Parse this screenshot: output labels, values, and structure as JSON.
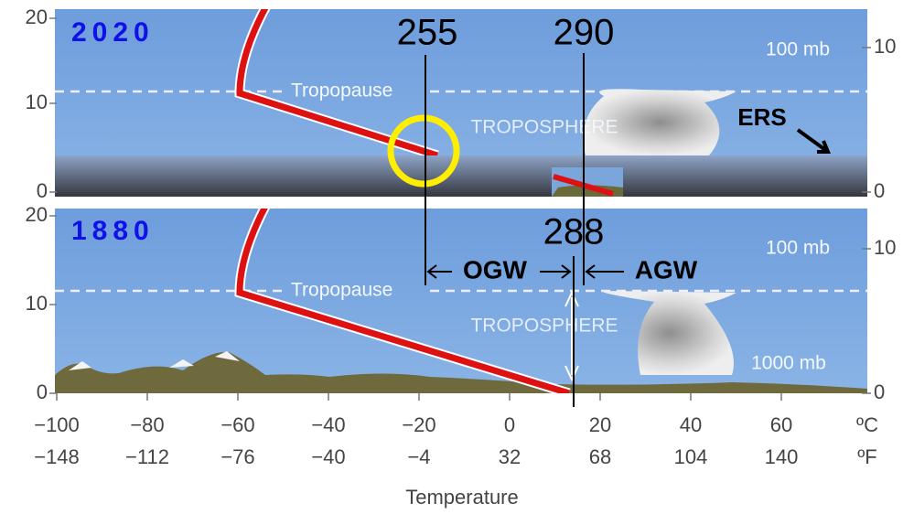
{
  "panels": [
    {
      "year": "2020",
      "left_ticks": [
        "20",
        "10",
        "0"
      ],
      "right_ticks": [
        "10",
        "0"
      ],
      "pressure_top": "100 mb",
      "tropopause": "Tropopause",
      "troposphere": "TROPOSPHERE",
      "marker_a": "255",
      "marker_b": "290",
      "ers": "ERS"
    },
    {
      "year": "1880",
      "left_ticks": [
        "20",
        "10",
        "0"
      ],
      "right_ticks": [
        "10",
        "0"
      ],
      "pressure_top": "100 mb",
      "pressure_bottom": "1000 mb",
      "tropopause": "Tropopause",
      "troposphere": "TROPOSPHERE",
      "marker": "288",
      "ogw": "OGW",
      "agw": "AGW"
    }
  ],
  "x_axis": {
    "celsius": [
      "−100",
      "−80",
      "−60",
      "−40",
      "−20",
      "0",
      "20",
      "40",
      "60"
    ],
    "celsius_unit": "ºC",
    "fahrenheit": [
      "−148",
      "−112",
      "−76",
      "−40",
      "−4",
      "32",
      "68",
      "104",
      "140"
    ],
    "fahrenheit_unit": "ºF",
    "title": "Temperature"
  }
}
